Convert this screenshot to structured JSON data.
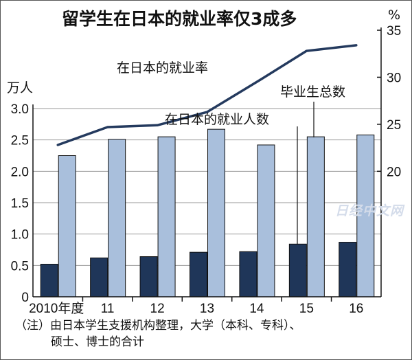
{
  "chart_data": {
    "type": "bar+line",
    "title": "留学生在日本的就业率仅3成多",
    "left_axis": {
      "unit": "万人",
      "ticks": [
        "0",
        "0.5",
        "1.0",
        "1.5",
        "2.0",
        "2.5",
        "3.0"
      ],
      "ylim": [
        0,
        3.0
      ]
    },
    "right_axis": {
      "unit": "%",
      "ticks": [
        "20",
        "25",
        "30",
        "35"
      ],
      "ylim": [
        20,
        35
      ]
    },
    "categories": [
      "2010年度",
      "11",
      "12",
      "13",
      "14",
      "15",
      "16"
    ],
    "series": [
      {
        "name": "在日本的就业人数",
        "kind": "bar",
        "axis": "left",
        "color": "#1f3659",
        "values": [
          0.52,
          0.62,
          0.64,
          0.71,
          0.72,
          0.84,
          0.87
        ]
      },
      {
        "name": "毕业生总数",
        "kind": "bar",
        "axis": "left",
        "color": "#a9bfdc",
        "values": [
          2.25,
          2.51,
          2.55,
          2.67,
          2.42,
          2.55,
          2.58
        ]
      },
      {
        "name": "在日本的就业率",
        "kind": "line",
        "axis": "right",
        "color": "#243a5e",
        "values": [
          22.8,
          24.7,
          24.9,
          26.3,
          29.5,
          32.8,
          33.4
        ]
      }
    ],
    "annotations": [
      "在日本的就业率",
      "毕业生总数",
      "在日本的就业人数"
    ]
  },
  "note": {
    "line1": "（注）由日本学生支援机构整理，大学（本科、专科）、",
    "line2": "硕士、博士的合计"
  },
  "watermark": "日经中文网"
}
